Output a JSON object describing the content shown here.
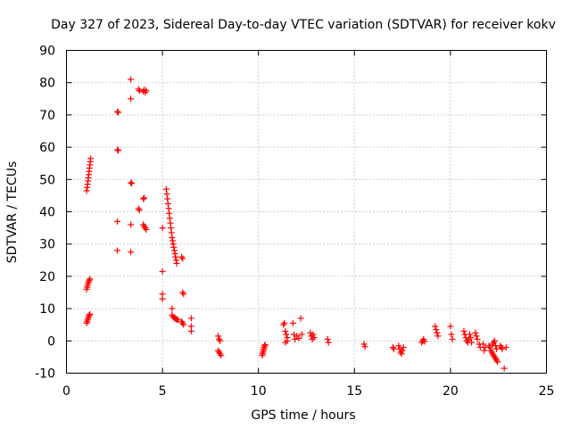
{
  "chart_data": {
    "type": "scatter",
    "title": "Day 327 of 2023, Sidereal Day-to-day VTEC variation (SDTVAR) for receiver kokv",
    "xlabel": "GPS time / hours",
    "ylabel": "SDTVAR / TECUs",
    "xlim": [
      0,
      25
    ],
    "ylim": [
      -10,
      90
    ],
    "x_ticks": [
      0,
      5,
      10,
      15,
      20,
      25
    ],
    "y_ticks": [
      -10,
      0,
      10,
      20,
      30,
      40,
      50,
      60,
      70,
      80,
      90
    ],
    "x_tick_labels": [
      "0",
      "5",
      "10",
      "15",
      "20",
      "25"
    ],
    "y_tick_labels": [
      "-10",
      "0",
      "10",
      "20",
      "30",
      "40",
      "50",
      "60",
      "70",
      "80",
      "90"
    ],
    "grid": true,
    "marker": "+",
    "color": "#ff0000",
    "series": [
      {
        "name": "SDTVAR",
        "points": [
          [
            1.05,
            46.5
          ],
          [
            1.08,
            47.5
          ],
          [
            1.1,
            48.5
          ],
          [
            1.12,
            49.5
          ],
          [
            1.14,
            50.5
          ],
          [
            1.16,
            51.5
          ],
          [
            1.18,
            52.5
          ],
          [
            1.2,
            53.5
          ],
          [
            1.22,
            54.5
          ],
          [
            1.24,
            55.5
          ],
          [
            1.26,
            56.5
          ],
          [
            1.05,
            16.0
          ],
          [
            1.08,
            16.6
          ],
          [
            1.1,
            17.2
          ],
          [
            1.13,
            17.8
          ],
          [
            1.16,
            18.3
          ],
          [
            1.19,
            18.8
          ],
          [
            1.22,
            19.2
          ],
          [
            1.05,
            5.5
          ],
          [
            1.08,
            6.0
          ],
          [
            1.1,
            6.5
          ],
          [
            1.13,
            7.0
          ],
          [
            1.16,
            7.5
          ],
          [
            1.19,
            8.0
          ],
          [
            1.22,
            8.3
          ],
          [
            2.65,
            71.0
          ],
          [
            2.7,
            70.8
          ],
          [
            2.65,
            59.2
          ],
          [
            2.7,
            59.0
          ],
          [
            2.65,
            37.0
          ],
          [
            2.65,
            28.0
          ],
          [
            3.35,
            81.0
          ],
          [
            3.35,
            75.0
          ],
          [
            3.35,
            49.0
          ],
          [
            3.4,
            48.8
          ],
          [
            3.35,
            36.0
          ],
          [
            3.35,
            27.5
          ],
          [
            3.75,
            78.0
          ],
          [
            3.8,
            77.5
          ],
          [
            3.75,
            41.0
          ],
          [
            3.8,
            40.5
          ],
          [
            4.0,
            77.2
          ],
          [
            4.05,
            77.8
          ],
          [
            4.1,
            77.0
          ],
          [
            4.15,
            77.5
          ],
          [
            4.0,
            44.0
          ],
          [
            4.05,
            44.3
          ],
          [
            4.0,
            36.0
          ],
          [
            4.05,
            35.5
          ],
          [
            4.1,
            35.0
          ],
          [
            4.15,
            34.5
          ],
          [
            5.0,
            35.0
          ],
          [
            5.0,
            21.5
          ],
          [
            5.0,
            14.5
          ],
          [
            5.0,
            13.0
          ],
          [
            5.2,
            47.0
          ],
          [
            5.23,
            45.5
          ],
          [
            5.26,
            44.0
          ],
          [
            5.29,
            42.5
          ],
          [
            5.32,
            41.0
          ],
          [
            5.35,
            39.5
          ],
          [
            5.38,
            38.0
          ],
          [
            5.41,
            36.5
          ],
          [
            5.44,
            35.0
          ],
          [
            5.47,
            33.5
          ],
          [
            5.5,
            32.0
          ],
          [
            5.53,
            31.0
          ],
          [
            5.56,
            30.0
          ],
          [
            5.59,
            29.0
          ],
          [
            5.62,
            28.0
          ],
          [
            5.65,
            27.0
          ],
          [
            5.68,
            26.0
          ],
          [
            5.71,
            25.0
          ],
          [
            5.74,
            24.0
          ],
          [
            6.0,
            26.0
          ],
          [
            6.05,
            25.5
          ],
          [
            5.5,
            10.0
          ],
          [
            5.5,
            8.0
          ],
          [
            5.55,
            7.5
          ],
          [
            5.6,
            7.2
          ],
          [
            5.65,
            7.0
          ],
          [
            5.7,
            6.8
          ],
          [
            5.75,
            6.6
          ],
          [
            5.8,
            6.5
          ],
          [
            6.05,
            15.0
          ],
          [
            6.1,
            14.5
          ],
          [
            6.0,
            6.0
          ],
          [
            6.05,
            5.5
          ],
          [
            6.1,
            5.0
          ],
          [
            6.5,
            7.0
          ],
          [
            6.5,
            4.5
          ],
          [
            6.5,
            3.0
          ],
          [
            7.9,
            1.5
          ],
          [
            7.95,
            0.5
          ],
          [
            8.0,
            0.0
          ],
          [
            7.9,
            -3.0
          ],
          [
            7.95,
            -3.5
          ],
          [
            8.0,
            -4.0
          ],
          [
            8.05,
            -4.5
          ],
          [
            10.2,
            -4.5
          ],
          [
            10.22,
            -4.0
          ],
          [
            10.24,
            -3.5
          ],
          [
            10.26,
            -3.0
          ],
          [
            10.28,
            -2.5
          ],
          [
            10.3,
            -2.0
          ],
          [
            10.32,
            -1.5
          ],
          [
            10.35,
            -1.2
          ],
          [
            11.3,
            5.0
          ],
          [
            11.35,
            5.5
          ],
          [
            11.4,
            3.0
          ],
          [
            11.45,
            2.0
          ],
          [
            11.5,
            1.0
          ],
          [
            11.4,
            -0.5
          ],
          [
            11.5,
            0.0
          ],
          [
            11.8,
            5.5
          ],
          [
            11.85,
            2.0
          ],
          [
            11.9,
            0.5
          ],
          [
            12.0,
            1.5
          ],
          [
            12.1,
            0.8
          ],
          [
            12.2,
            7.0
          ],
          [
            12.25,
            2.0
          ],
          [
            12.7,
            2.5
          ],
          [
            12.75,
            1.5
          ],
          [
            12.8,
            0.5
          ],
          [
            12.85,
            2.0
          ],
          [
            12.9,
            1.0
          ],
          [
            13.6,
            0.5
          ],
          [
            13.65,
            -0.5
          ],
          [
            15.5,
            -1.0
          ],
          [
            15.55,
            -1.8
          ],
          [
            17.0,
            -2.0
          ],
          [
            17.05,
            -2.5
          ],
          [
            17.3,
            -1.5
          ],
          [
            17.35,
            -2.5
          ],
          [
            17.4,
            -3.5
          ],
          [
            17.45,
            -4.0
          ],
          [
            17.5,
            -3.0
          ],
          [
            17.55,
            -2.0
          ],
          [
            18.5,
            -0.5
          ],
          [
            18.55,
            0.0
          ],
          [
            18.6,
            0.5
          ],
          [
            18.65,
            -0.2
          ],
          [
            19.2,
            4.5
          ],
          [
            19.25,
            3.5
          ],
          [
            19.3,
            2.5
          ],
          [
            19.35,
            1.5
          ],
          [
            20.0,
            4.5
          ],
          [
            20.05,
            2.0
          ],
          [
            20.1,
            0.5
          ],
          [
            20.7,
            3.0
          ],
          [
            20.75,
            2.0
          ],
          [
            20.8,
            1.0
          ],
          [
            20.85,
            0.0
          ],
          [
            20.9,
            -0.5
          ],
          [
            20.95,
            0.5
          ],
          [
            21.0,
            2.0
          ],
          [
            21.05,
            1.0
          ],
          [
            21.1,
            -0.5
          ],
          [
            21.3,
            2.5
          ],
          [
            21.35,
            1.5
          ],
          [
            21.4,
            0.5
          ],
          [
            21.5,
            -1.0
          ],
          [
            21.55,
            -2.0
          ],
          [
            21.7,
            -1.0
          ],
          [
            21.75,
            -3.0
          ],
          [
            21.8,
            -2.0
          ],
          [
            22.0,
            -1.5
          ],
          [
            22.05,
            -2.0
          ],
          [
            22.1,
            -3.0
          ],
          [
            22.15,
            -3.5
          ],
          [
            22.2,
            -4.0
          ],
          [
            22.25,
            -4.5
          ],
          [
            22.3,
            -5.0
          ],
          [
            22.35,
            -5.5
          ],
          [
            22.4,
            -6.0
          ],
          [
            22.45,
            -6.5
          ],
          [
            22.2,
            -1.0
          ],
          [
            22.25,
            -0.5
          ],
          [
            22.3,
            0.0
          ],
          [
            22.35,
            -1.5
          ],
          [
            22.4,
            -2.5
          ],
          [
            22.6,
            -1.5
          ],
          [
            22.65,
            -2.0
          ],
          [
            22.7,
            -2.5
          ],
          [
            22.8,
            -8.5
          ],
          [
            22.9,
            -2.0
          ]
        ]
      }
    ]
  }
}
